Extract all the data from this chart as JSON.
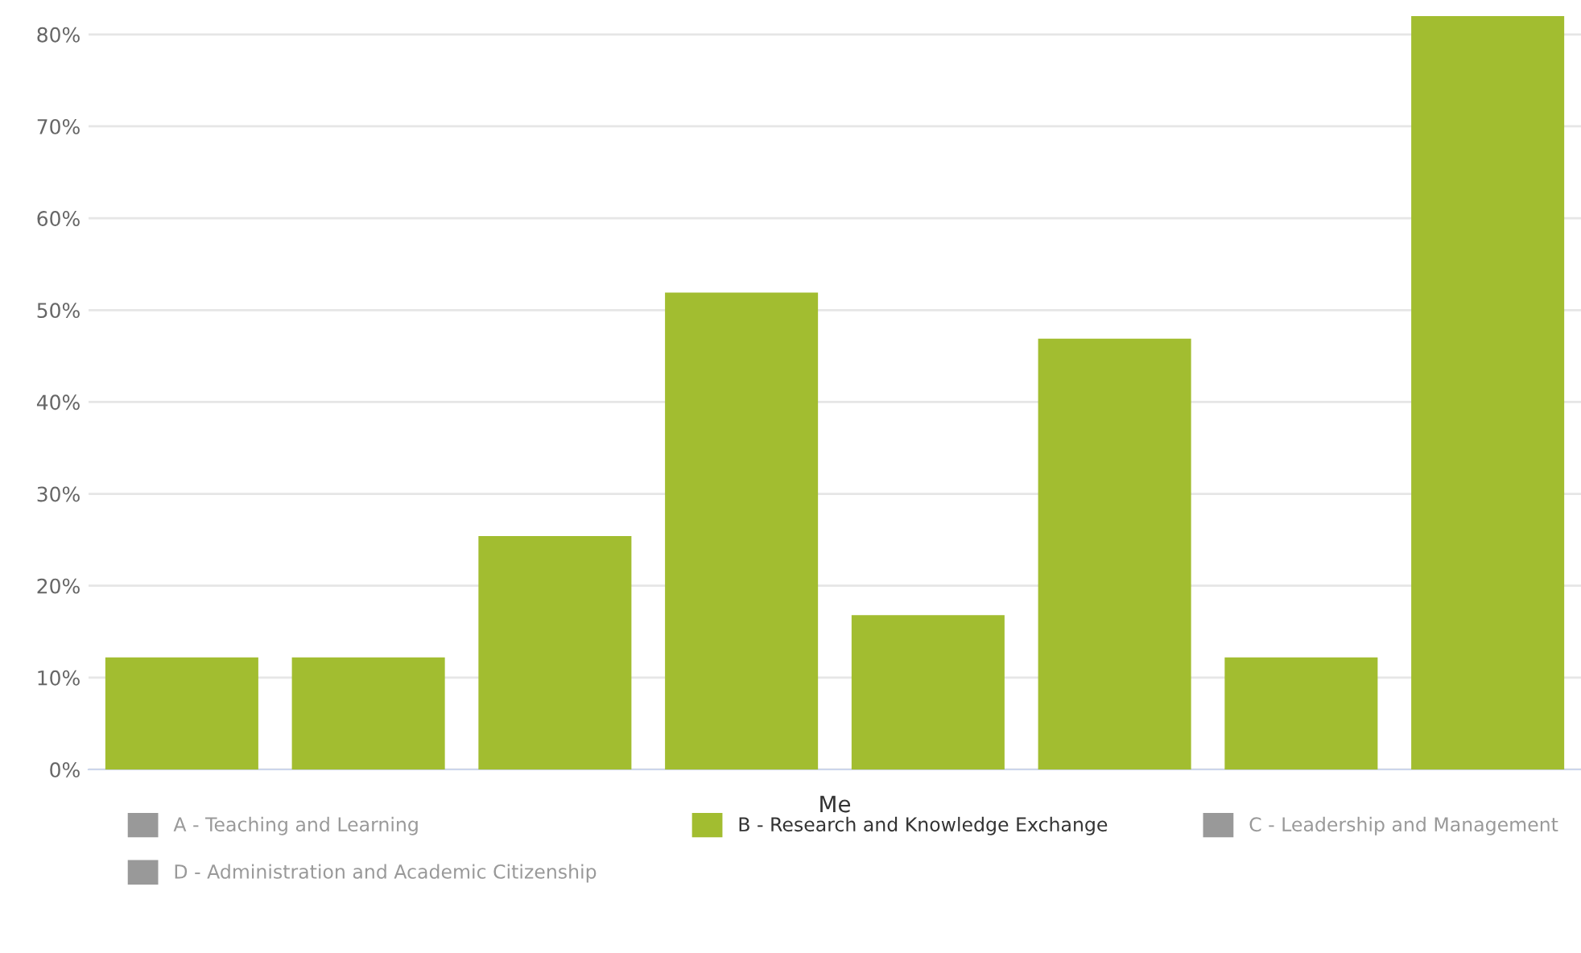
{
  "chart_data": {
    "type": "bar",
    "xlabel": "Me",
    "categories": [
      null,
      null,
      null,
      null,
      null,
      null,
      null,
      null
    ],
    "series": [
      {
        "name": "A - Teaching and Learning",
        "color": "#999999",
        "values": [
          null,
          null,
          null,
          null,
          null,
          null,
          null,
          null
        ]
      },
      {
        "name": "B - Research and Knowledge Exchange",
        "color": "#a2bd30",
        "values": [
          12.2,
          12.2,
          25.4,
          51.9,
          16.8,
          46.9,
          12.2,
          82
        ]
      },
      {
        "name": "C - Leadership and Management",
        "color": "#999999",
        "values": [
          null,
          null,
          null,
          null,
          null,
          null,
          null,
          null
        ]
      },
      {
        "name": "D - Administration and Academic Citizenship",
        "color": "#999999",
        "values": [
          null,
          null,
          null,
          null,
          null,
          null,
          null,
          null
        ]
      }
    ],
    "ylim": [
      0,
      82
    ],
    "yticks": [
      {
        "value": 0,
        "label": "0%"
      },
      {
        "value": 10,
        "label": "10%"
      },
      {
        "value": 20,
        "label": "20%"
      },
      {
        "value": 30,
        "label": "30%"
      },
      {
        "value": 40,
        "label": "40%"
      },
      {
        "value": 50,
        "label": "50%"
      },
      {
        "value": 60,
        "label": "60%"
      },
      {
        "value": 70,
        "label": "70%"
      },
      {
        "value": 80,
        "label": "80%"
      }
    ],
    "grid": "y",
    "legend": "bottom"
  }
}
